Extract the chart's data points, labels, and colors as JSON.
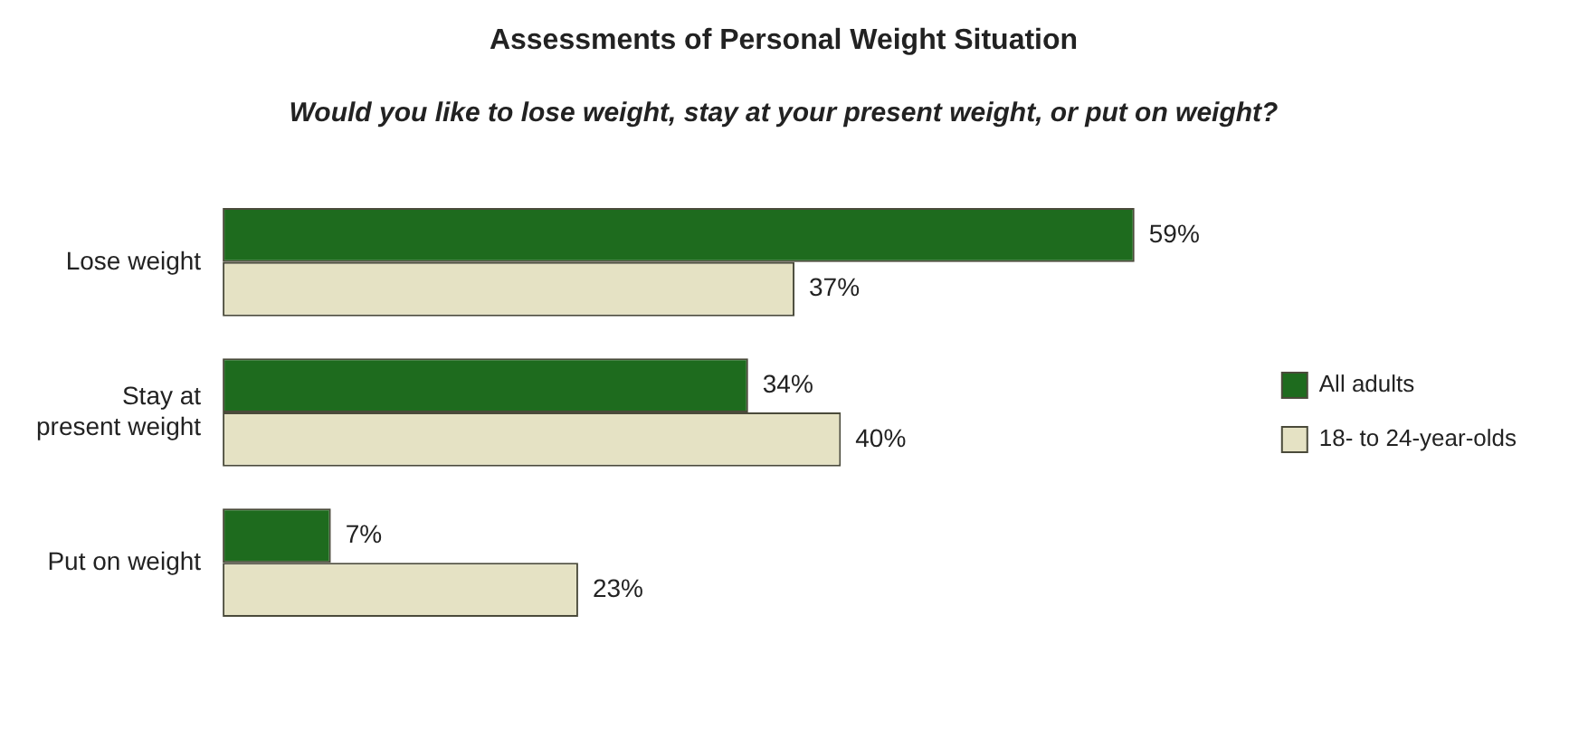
{
  "chart_data": {
    "type": "bar",
    "orientation": "horizontal",
    "title": "Assessments of Personal Weight Situation",
    "subtitle": "Would you like to lose weight, stay at your present weight, or put on weight?",
    "categories": [
      "Lose weight",
      "Stay at present weight",
      "Put on weight"
    ],
    "series": [
      {
        "name": "All adults",
        "color": "#1e6b1e",
        "values": [
          59,
          34,
          7
        ],
        "value_labels": [
          "59%",
          "34%",
          "7%"
        ]
      },
      {
        "name": "18- to 24-year-olds",
        "color": "#e5e2c4",
        "values": [
          37,
          40,
          23
        ],
        "value_labels": [
          "37%",
          "40%",
          "23%"
        ]
      }
    ],
    "legend": "right",
    "grid": false
  }
}
